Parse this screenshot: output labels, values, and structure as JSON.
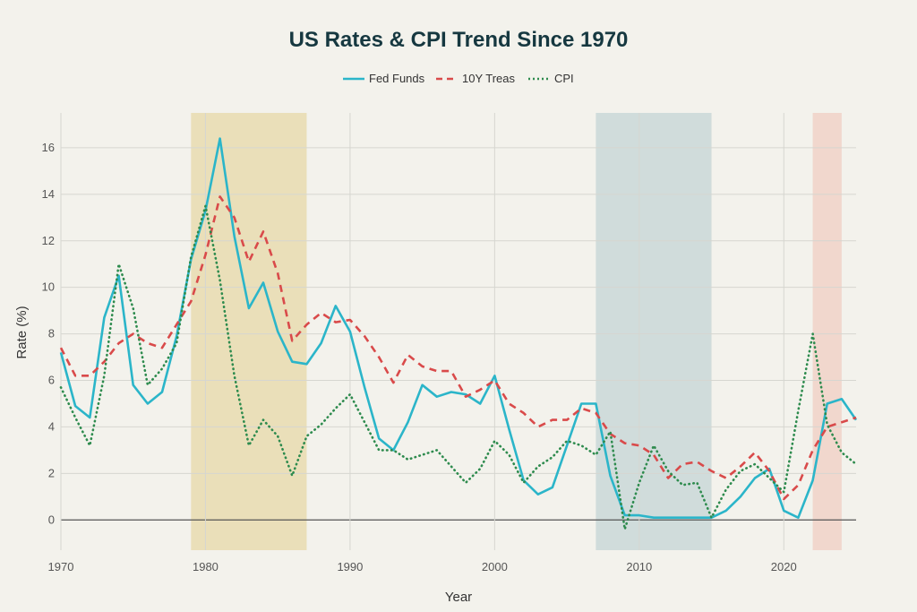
{
  "chart_data": {
    "type": "line",
    "title": "US Rates & CPI Trend Since 1970",
    "xlabel": "Year",
    "ylabel": "Rate (%)",
    "xlim": [
      1970,
      2025
    ],
    "ylim": [
      -1.3,
      17.5
    ],
    "x_ticks": [
      1970,
      1980,
      1990,
      2000,
      2010,
      2020
    ],
    "y_ticks": [
      0,
      2,
      4,
      6,
      8,
      10,
      12,
      14,
      16
    ],
    "grid": true,
    "legend_position": "top-center",
    "x": [
      1970,
      1971,
      1972,
      1973,
      1974,
      1975,
      1976,
      1977,
      1978,
      1979,
      1980,
      1981,
      1982,
      1983,
      1984,
      1985,
      1986,
      1987,
      1988,
      1989,
      1990,
      1991,
      1992,
      1993,
      1994,
      1995,
      1996,
      1997,
      1998,
      1999,
      2000,
      2001,
      2002,
      2003,
      2004,
      2005,
      2006,
      2007,
      2008,
      2009,
      2010,
      2011,
      2012,
      2013,
      2014,
      2015,
      2016,
      2017,
      2018,
      2019,
      2020,
      2021,
      2022,
      2023,
      2024,
      2025
    ],
    "series": [
      {
        "name": "Fed Funds",
        "color": "#2bb5c9",
        "dash": "solid",
        "values": [
          7.2,
          4.9,
          4.4,
          8.7,
          10.5,
          5.8,
          5.0,
          5.5,
          7.9,
          11.2,
          13.3,
          16.4,
          12.2,
          9.1,
          10.2,
          8.1,
          6.8,
          6.7,
          7.6,
          9.2,
          8.1,
          5.7,
          3.5,
          3.0,
          4.2,
          5.8,
          5.3,
          5.5,
          5.4,
          5.0,
          6.2,
          3.9,
          1.7,
          1.1,
          1.4,
          3.2,
          5.0,
          5.0,
          1.9,
          0.2,
          0.2,
          0.1,
          0.1,
          0.1,
          0.1,
          0.1,
          0.4,
          1.0,
          1.8,
          2.2,
          0.4,
          0.1,
          1.7,
          5.0,
          5.2,
          4.3
        ]
      },
      {
        "name": "10Y Treas",
        "color": "#d94a4a",
        "dash": "dashed",
        "values": [
          7.4,
          6.2,
          6.2,
          6.8,
          7.6,
          8.0,
          7.6,
          7.4,
          8.4,
          9.4,
          11.4,
          13.9,
          13.0,
          11.1,
          12.4,
          10.6,
          7.7,
          8.4,
          8.9,
          8.5,
          8.6,
          7.9,
          7.0,
          5.9,
          7.1,
          6.6,
          6.4,
          6.4,
          5.3,
          5.6,
          6.0,
          5.0,
          4.6,
          4.0,
          4.3,
          4.3,
          4.8,
          4.6,
          3.7,
          3.3,
          3.2,
          2.8,
          1.8,
          2.4,
          2.5,
          2.1,
          1.8,
          2.3,
          2.9,
          2.1,
          0.9,
          1.5,
          3.0,
          4.0,
          4.2,
          4.4
        ]
      },
      {
        "name": "CPI",
        "color": "#2e8b4e",
        "dash": "dotted",
        "values": [
          5.7,
          4.4,
          3.2,
          6.2,
          11.0,
          9.1,
          5.8,
          6.5,
          7.6,
          11.3,
          13.5,
          10.3,
          6.2,
          3.2,
          4.3,
          3.6,
          1.9,
          3.6,
          4.1,
          4.8,
          5.4,
          4.2,
          3.0,
          3.0,
          2.6,
          2.8,
          3.0,
          2.3,
          1.6,
          2.2,
          3.4,
          2.8,
          1.6,
          2.3,
          2.7,
          3.4,
          3.2,
          2.8,
          3.8,
          -0.4,
          1.6,
          3.2,
          2.1,
          1.5,
          1.6,
          0.1,
          1.3,
          2.1,
          2.4,
          1.8,
          1.2,
          4.7,
          8.0,
          4.1,
          2.9,
          2.4
        ]
      }
    ],
    "shaded_regions": [
      {
        "from": 1979,
        "to": 1987,
        "color": "#e8dcb0"
      },
      {
        "from": 2007,
        "to": 2015,
        "color": "#c9d8d8"
      },
      {
        "from": 2022,
        "to": 2024,
        "color": "#f0d2c8"
      }
    ]
  }
}
